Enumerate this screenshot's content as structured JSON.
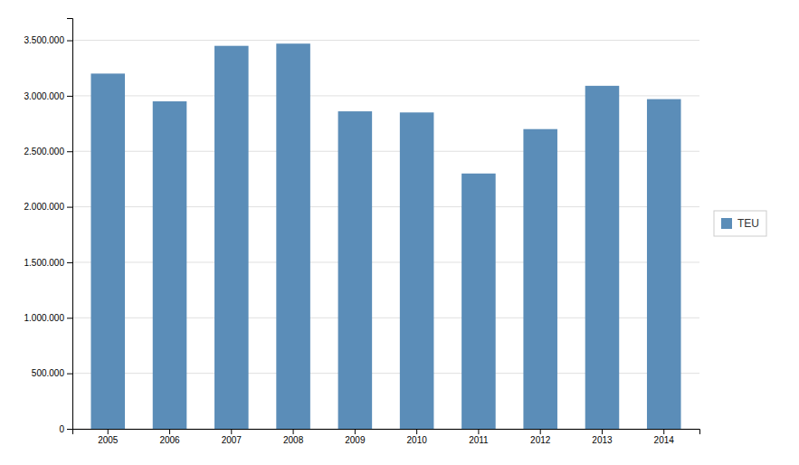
{
  "chart_data": {
    "type": "bar",
    "categories": [
      "2005",
      "2006",
      "2007",
      "2008",
      "2009",
      "2010",
      "2011",
      "2012",
      "2013",
      "2014"
    ],
    "series": [
      {
        "name": "TEU",
        "color": "#5b8db8",
        "values": [
          3200000,
          2950000,
          3450000,
          3470000,
          2860000,
          2850000,
          2300000,
          2700000,
          3090000,
          2970000
        ]
      }
    ],
    "ylim": [
      0,
      3700000
    ],
    "yticks": [
      0,
      {
        "value": 500000,
        "label": "500.000"
      },
      {
        "value": 1000000,
        "label": "1.000.000"
      },
      {
        "value": 1500000,
        "label": "1.500.000"
      },
      {
        "value": 2000000,
        "label": "2.000.000"
      },
      {
        "value": 2500000,
        "label": "2.500.000"
      },
      {
        "value": 3000000,
        "label": "3.000.000"
      },
      {
        "value": 3500000,
        "label": "3.500.000"
      }
    ],
    "grid": true,
    "legend": "right"
  }
}
